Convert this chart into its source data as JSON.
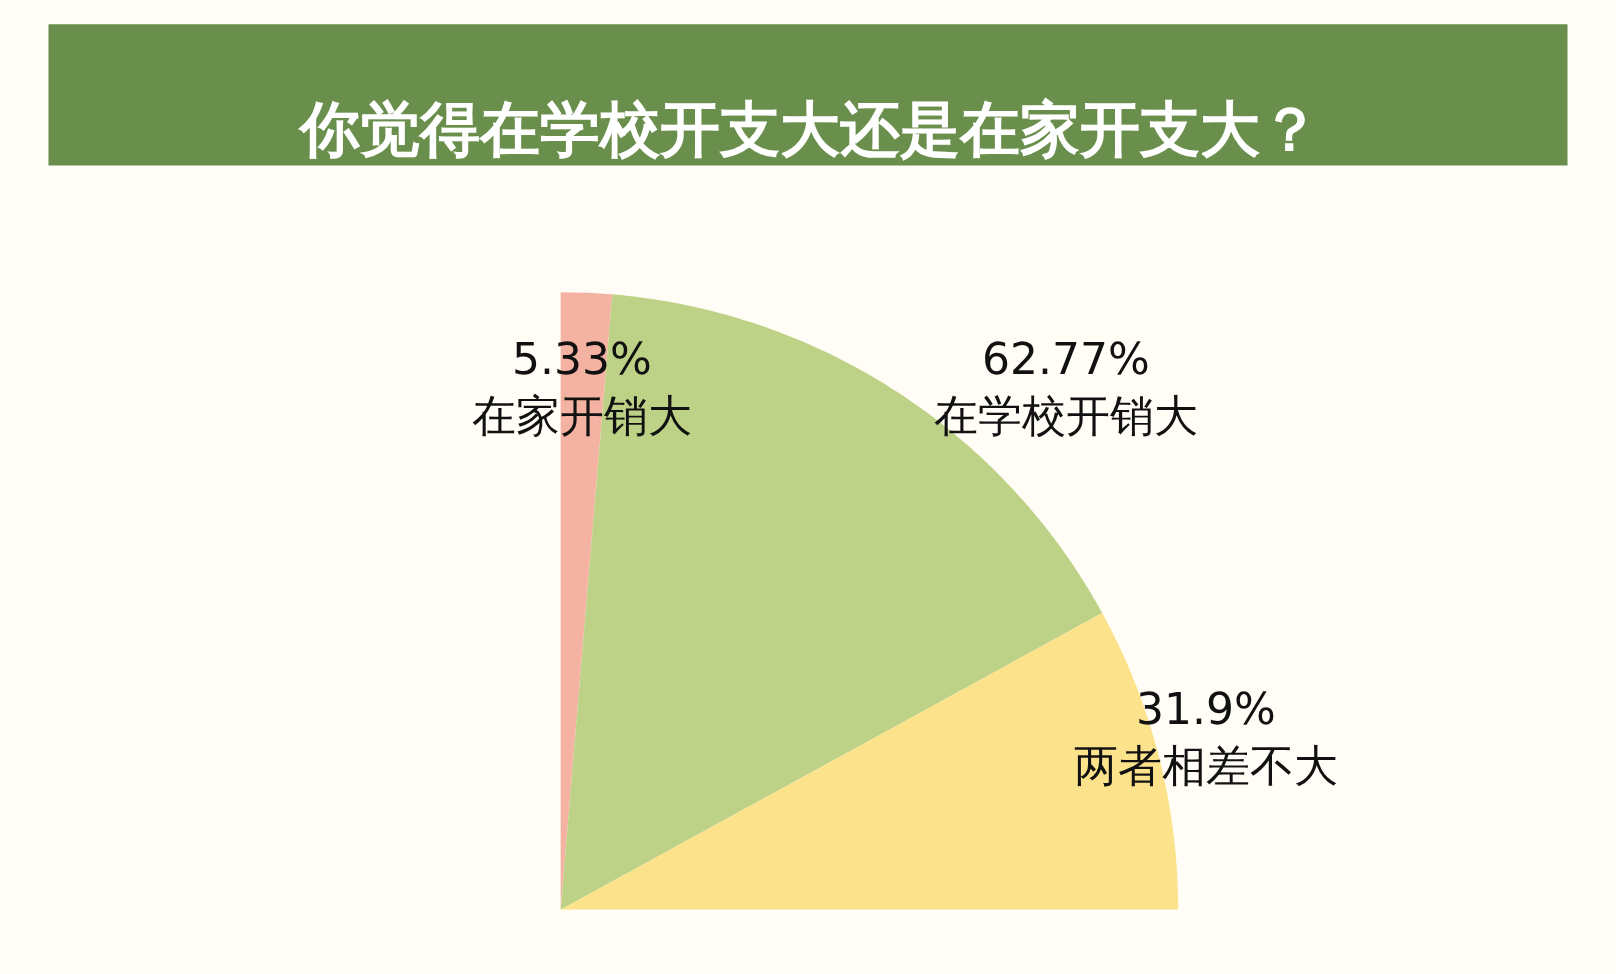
{
  "chart_data": {
    "type": "pie",
    "title": "你觉得在学校开支大还是在家开支大？",
    "categories": [
      "在家开销大",
      "在学校开销大",
      "两者相差不大"
    ],
    "values": [
      5.33,
      62.77,
      31.9
    ],
    "value_labels": [
      "5.33%",
      "62.77%",
      "31.9%"
    ],
    "colors": [
      "#f4b3a2",
      "#bdd287",
      "#fde28c"
    ],
    "legend": false
  }
}
